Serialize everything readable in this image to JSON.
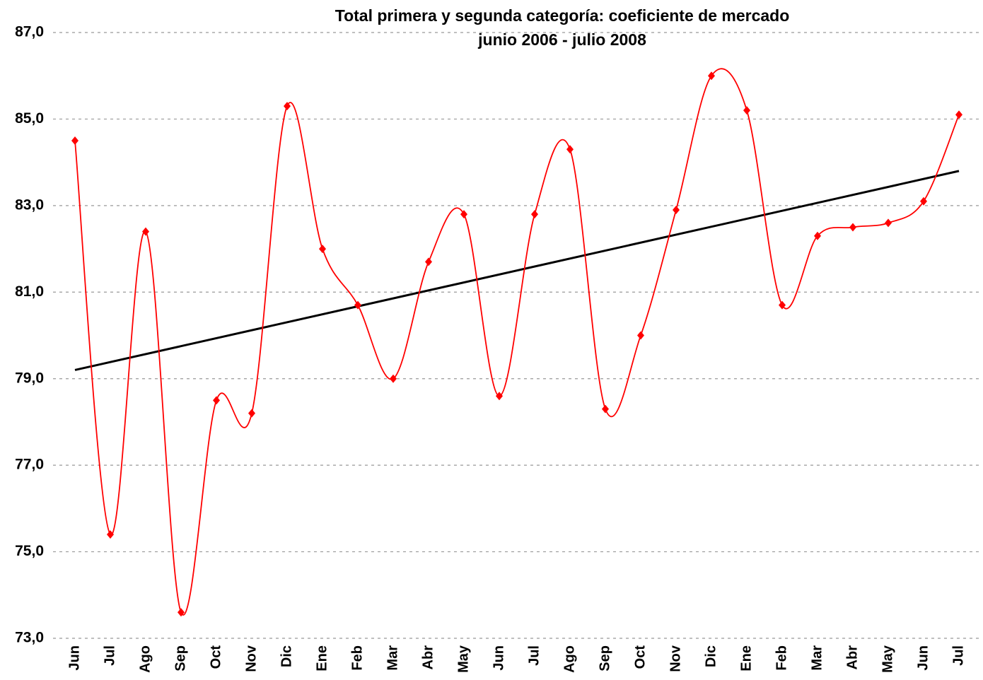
{
  "chart_data": {
    "type": "line",
    "title": [
      "Total primera y  segunda categoría: coeficiente de mercado",
      "junio 2006 - julio 2008"
    ],
    "categories": [
      "Jun",
      "Jul",
      "Ago",
      "Sep",
      "Oct",
      "Nov",
      "Dic",
      "Ene",
      "Feb",
      "Mar",
      "Abr",
      "May",
      "Jun",
      "Jul",
      "Ago",
      "Sep",
      "Oct",
      "Nov",
      "Dic",
      "Ene",
      "Feb",
      "Mar",
      "Abr",
      "May",
      "Jun",
      "Jul"
    ],
    "series": [
      {
        "color": "#ff0000",
        "values": [
          84.5,
          75.4,
          82.4,
          73.6,
          78.5,
          78.2,
          85.3,
          82.0,
          80.7,
          79.0,
          81.7,
          82.8,
          78.6,
          82.8,
          84.3,
          78.3,
          80.0,
          82.9,
          86.0,
          85.2,
          80.7,
          82.3,
          82.5,
          82.6,
          83.1,
          85.1
        ]
      }
    ],
    "trendline": {
      "color": "#000000",
      "values": [
        79.2,
        83.8
      ]
    },
    "ylim": [
      73,
      87
    ],
    "yticks": [
      {
        "value": 73,
        "label": "73,0"
      },
      {
        "value": 75,
        "label": "75,0"
      },
      {
        "value": 77,
        "label": "77,0"
      },
      {
        "value": 79,
        "label": "79,0"
      },
      {
        "value": 81,
        "label": "81,0"
      },
      {
        "value": 83,
        "label": "83,0"
      },
      {
        "value": 85,
        "label": "85,0"
      },
      {
        "value": 87,
        "label": "87,0"
      }
    ],
    "grid": true
  }
}
